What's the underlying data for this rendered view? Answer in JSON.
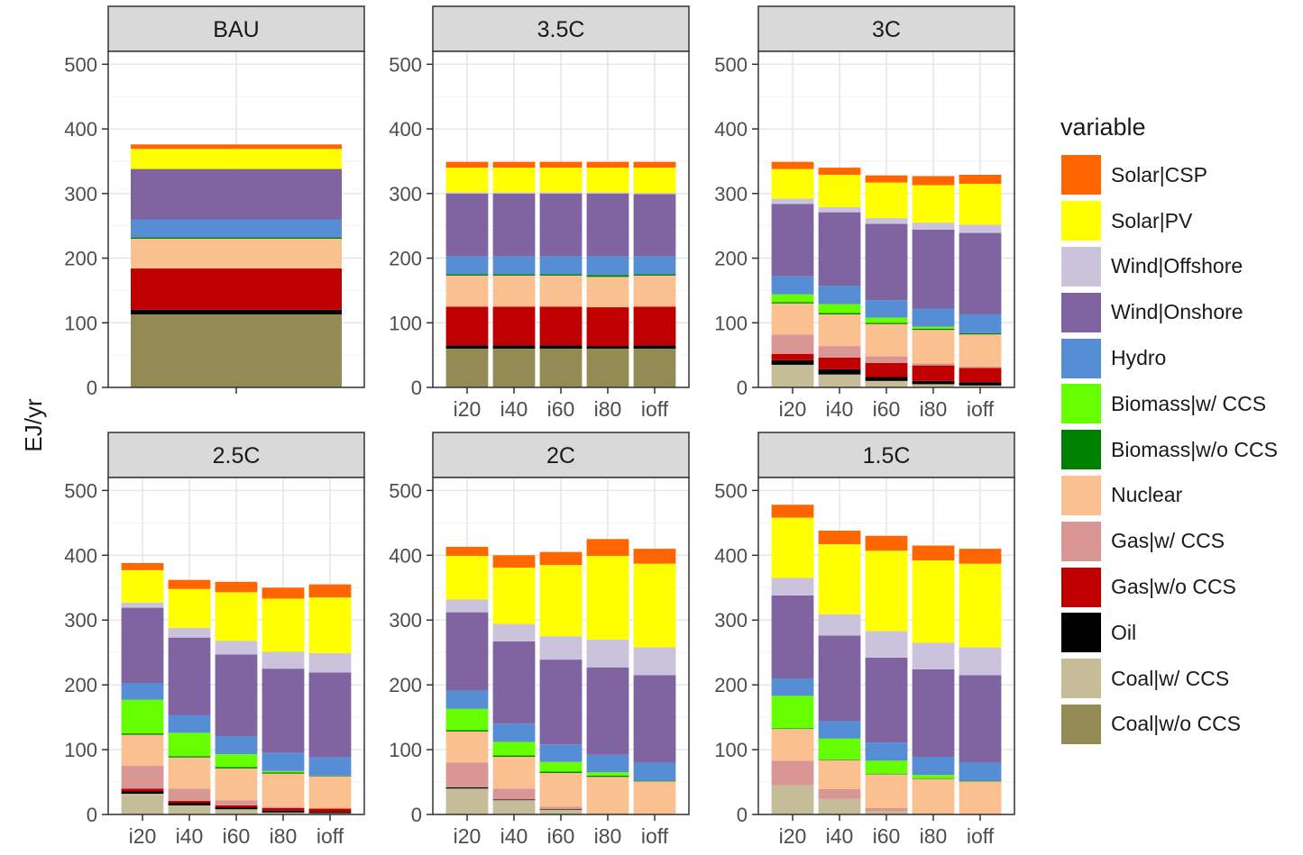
{
  "chart_data": {
    "type": "bar",
    "stacked": true,
    "ylabel": "EJ/yr",
    "ylim": [
      0,
      520
    ],
    "yticks": [
      0,
      100,
      200,
      300,
      400,
      500
    ],
    "legend": {
      "title": "variable",
      "placement": "right",
      "entries": [
        "Solar|CSP",
        "Solar|PV",
        "Wind|Offshore",
        "Wind|Onshore",
        "Hydro",
        "Biomass|w/ CCS",
        "Biomass|w/o CCS",
        "Nuclear",
        "Gas|w/ CCS",
        "Gas|w/o CCS",
        "Oil",
        "Coal|w/ CCS",
        "Coal|w/o CCS"
      ]
    },
    "series_order_bottom_up": [
      "Coal|w/o CCS",
      "Coal|w/ CCS",
      "Oil",
      "Gas|w/o CCS",
      "Gas|w/ CCS",
      "Nuclear",
      "Biomass|w/o CCS",
      "Biomass|w/ CCS",
      "Hydro",
      "Wind|Onshore",
      "Wind|Offshore",
      "Solar|PV",
      "Solar|CSP"
    ],
    "colors": {
      "Solar|CSP": "#ff6600",
      "Solar|PV": "#ffff00",
      "Wind|Offshore": "#cbc3dc",
      "Wind|Onshore": "#8064a2",
      "Hydro": "#558ed5",
      "Biomass|w/ CCS": "#66ff00",
      "Biomass|w/o CCS": "#008000",
      "Nuclear": "#fac090",
      "Gas|w/ CCS": "#d99694",
      "Gas|w/o CCS": "#c00000",
      "Oil": "#000000",
      "Coal|w/ CCS": "#c4bd97",
      "Coal|w/o CCS": "#948a54"
    },
    "panels": [
      {
        "title": "BAU",
        "categories": [
          ""
        ],
        "bars": [
          {
            "Coal|w/o CCS": 113,
            "Coal|w/ CCS": 0,
            "Oil": 7,
            "Gas|w/o CCS": 64,
            "Gas|w/ CCS": 0,
            "Nuclear": 46,
            "Biomass|w/o CCS": 2,
            "Biomass|w/ CCS": 0,
            "Hydro": 28,
            "Wind|Onshore": 78,
            "Wind|Offshore": 0,
            "Solar|PV": 31,
            "Solar|CSP": 7
          }
        ]
      },
      {
        "title": "3.5C",
        "categories": [
          "i20",
          "i40",
          "i60",
          "i80",
          "ioff"
        ],
        "bars": [
          {
            "Coal|w/o CCS": 60,
            "Coal|w/ CCS": 0,
            "Oil": 5,
            "Gas|w/o CCS": 60,
            "Gas|w/ CCS": 0,
            "Nuclear": 48,
            "Biomass|w/o CCS": 2,
            "Biomass|w/ CCS": 0,
            "Hydro": 28,
            "Wind|Onshore": 97,
            "Wind|Offshore": 2,
            "Solar|PV": 38,
            "Solar|CSP": 9
          },
          {
            "Coal|w/o CCS": 60,
            "Coal|w/ CCS": 0,
            "Oil": 5,
            "Gas|w/o CCS": 60,
            "Gas|w/ CCS": 0,
            "Nuclear": 48,
            "Biomass|w/o CCS": 2,
            "Biomass|w/ CCS": 0,
            "Hydro": 28,
            "Wind|Onshore": 97,
            "Wind|Offshore": 2,
            "Solar|PV": 38,
            "Solar|CSP": 9
          },
          {
            "Coal|w/o CCS": 60,
            "Coal|w/ CCS": 0,
            "Oil": 5,
            "Gas|w/o CCS": 60,
            "Gas|w/ CCS": 0,
            "Nuclear": 48,
            "Biomass|w/o CCS": 2,
            "Biomass|w/ CCS": 0,
            "Hydro": 28,
            "Wind|Onshore": 97,
            "Wind|Offshore": 2,
            "Solar|PV": 38,
            "Solar|CSP": 9
          },
          {
            "Coal|w/o CCS": 60,
            "Coal|w/ CCS": 0,
            "Oil": 4,
            "Gas|w/o CCS": 60,
            "Gas|w/ CCS": 0,
            "Nuclear": 47,
            "Biomass|w/o CCS": 3,
            "Biomass|w/ CCS": 0,
            "Hydro": 29,
            "Wind|Onshore": 97,
            "Wind|Offshore": 2,
            "Solar|PV": 38,
            "Solar|CSP": 9
          },
          {
            "Coal|w/o CCS": 60,
            "Coal|w/ CCS": 0,
            "Oil": 5,
            "Gas|w/o CCS": 60,
            "Gas|w/ CCS": 0,
            "Nuclear": 48,
            "Biomass|w/o CCS": 2,
            "Biomass|w/ CCS": 0,
            "Hydro": 28,
            "Wind|Onshore": 96,
            "Wind|Offshore": 2,
            "Solar|PV": 39,
            "Solar|CSP": 9
          }
        ]
      },
      {
        "title": "3C",
        "categories": [
          "i20",
          "i40",
          "i60",
          "i80",
          "ioff"
        ],
        "bars": [
          {
            "Coal|w/o CCS": 0,
            "Coal|w/ CCS": 35,
            "Oil": 7,
            "Gas|w/o CCS": 10,
            "Gas|w/ CCS": 30,
            "Nuclear": 48,
            "Biomass|w/o CCS": 2,
            "Biomass|w/ CCS": 12,
            "Hydro": 28,
            "Wind|Onshore": 112,
            "Wind|Offshore": 8,
            "Solar|PV": 46,
            "Solar|CSP": 11
          },
          {
            "Coal|w/o CCS": 0,
            "Coal|w/ CCS": 20,
            "Oil": 8,
            "Gas|w/o CCS": 18,
            "Gas|w/ CCS": 18,
            "Nuclear": 49,
            "Biomass|w/o CCS": 2,
            "Biomass|w/ CCS": 14,
            "Hydro": 28,
            "Wind|Onshore": 114,
            "Wind|Offshore": 8,
            "Solar|PV": 50,
            "Solar|CSP": 11
          },
          {
            "Coal|w/o CCS": 0,
            "Coal|w/ CCS": 10,
            "Oil": 6,
            "Gas|w/o CCS": 22,
            "Gas|w/ CCS": 10,
            "Nuclear": 50,
            "Biomass|w/o CCS": 2,
            "Biomass|w/ CCS": 8,
            "Hydro": 27,
            "Wind|Onshore": 118,
            "Wind|Offshore": 9,
            "Solar|PV": 55,
            "Solar|CSP": 11
          },
          {
            "Coal|w/o CCS": 0,
            "Coal|w/ CCS": 5,
            "Oil": 5,
            "Gas|w/o CCS": 24,
            "Gas|w/ CCS": 3,
            "Nuclear": 52,
            "Biomass|w/o CCS": 2,
            "Biomass|w/ CCS": 3,
            "Hydro": 28,
            "Wind|Onshore": 122,
            "Wind|Offshore": 11,
            "Solar|PV": 58,
            "Solar|CSP": 14
          },
          {
            "Coal|w/o CCS": 0,
            "Coal|w/ CCS": 3,
            "Oil": 5,
            "Gas|w/o CCS": 22,
            "Gas|w/ CCS": 2,
            "Nuclear": 50,
            "Biomass|w/o CCS": 2,
            "Biomass|w/ CCS": 0,
            "Hydro": 29,
            "Wind|Onshore": 126,
            "Wind|Offshore": 13,
            "Solar|PV": 63,
            "Solar|CSP": 14
          }
        ]
      },
      {
        "title": "2.5C",
        "categories": [
          "i20",
          "i40",
          "i60",
          "i80",
          "ioff"
        ],
        "bars": [
          {
            "Coal|w/o CCS": 0,
            "Coal|w/ CCS": 32,
            "Oil": 4,
            "Gas|w/o CCS": 4,
            "Gas|w/ CCS": 35,
            "Nuclear": 48,
            "Biomass|w/o CCS": 2,
            "Biomass|w/ CCS": 52,
            "Hydro": 26,
            "Wind|Onshore": 116,
            "Wind|Offshore": 8,
            "Solar|PV": 50,
            "Solar|CSP": 11
          },
          {
            "Coal|w/o CCS": 0,
            "Coal|w/ CCS": 14,
            "Oil": 4,
            "Gas|w/o CCS": 3,
            "Gas|w/ CCS": 19,
            "Nuclear": 48,
            "Biomass|w/o CCS": 2,
            "Biomass|w/ CCS": 36,
            "Hydro": 27,
            "Wind|Onshore": 120,
            "Wind|Offshore": 15,
            "Solar|PV": 60,
            "Solar|CSP": 14
          },
          {
            "Coal|w/o CCS": 0,
            "Coal|w/ CCS": 8,
            "Oil": 3,
            "Gas|w/o CCS": 3,
            "Gas|w/ CCS": 8,
            "Nuclear": 49,
            "Biomass|w/o CCS": 2,
            "Biomass|w/ CCS": 20,
            "Hydro": 28,
            "Wind|Onshore": 126,
            "Wind|Offshore": 21,
            "Solar|PV": 75,
            "Solar|CSP": 16
          },
          {
            "Coal|w/o CCS": 0,
            "Coal|w/ CCS": 3,
            "Oil": 3,
            "Gas|w/o CCS": 4,
            "Gas|w/ CCS": 2,
            "Nuclear": 51,
            "Biomass|w/o CCS": 2,
            "Biomass|w/ CCS": 2,
            "Hydro": 28,
            "Wind|Onshore": 130,
            "Wind|Offshore": 26,
            "Solar|PV": 82,
            "Solar|CSP": 17
          },
          {
            "Coal|w/o CCS": 0,
            "Coal|w/ CCS": 2,
            "Oil": 2,
            "Gas|w/o CCS": 5,
            "Gas|w/ CCS": 0,
            "Nuclear": 50,
            "Biomass|w/o CCS": 1,
            "Biomass|w/ CCS": 0,
            "Hydro": 28,
            "Wind|Onshore": 131,
            "Wind|Offshore": 30,
            "Solar|PV": 86,
            "Solar|CSP": 20
          }
        ]
      },
      {
        "title": "2C",
        "categories": [
          "i20",
          "i40",
          "i60",
          "i80",
          "ioff"
        ],
        "bars": [
          {
            "Coal|w/o CCS": 0,
            "Coal|w/ CCS": 40,
            "Oil": 2,
            "Gas|w/o CCS": 0,
            "Gas|w/ CCS": 38,
            "Nuclear": 48,
            "Biomass|w/o CCS": 2,
            "Biomass|w/ CCS": 33,
            "Hydro": 28,
            "Wind|Onshore": 121,
            "Wind|Offshore": 20,
            "Solar|PV": 67,
            "Solar|CSP": 14
          },
          {
            "Coal|w/o CCS": 0,
            "Coal|w/ CCS": 22,
            "Oil": 1,
            "Gas|w/o CCS": 0,
            "Gas|w/ CCS": 17,
            "Nuclear": 49,
            "Biomass|w/o CCS": 2,
            "Biomass|w/ CCS": 21,
            "Hydro": 28,
            "Wind|Onshore": 127,
            "Wind|Offshore": 27,
            "Solar|PV": 87,
            "Solar|CSP": 19
          },
          {
            "Coal|w/o CCS": 0,
            "Coal|w/ CCS": 7,
            "Oil": 1,
            "Gas|w/o CCS": 0,
            "Gas|w/ CCS": 4,
            "Nuclear": 52,
            "Biomass|w/o CCS": 2,
            "Biomass|w/ CCS": 15,
            "Hydro": 27,
            "Wind|Onshore": 131,
            "Wind|Offshore": 36,
            "Solar|PV": 110,
            "Solar|CSP": 20
          },
          {
            "Coal|w/o CCS": 0,
            "Coal|w/ CCS": 2,
            "Oil": 0,
            "Gas|w/o CCS": 0,
            "Gas|w/ CCS": 0,
            "Nuclear": 56,
            "Biomass|w/o CCS": 2,
            "Biomass|w/ CCS": 5,
            "Hydro": 27,
            "Wind|Onshore": 135,
            "Wind|Offshore": 43,
            "Solar|PV": 129,
            "Solar|CSP": 26
          },
          {
            "Coal|w/o CCS": 0,
            "Coal|w/ CCS": 0,
            "Oil": 0,
            "Gas|w/o CCS": 0,
            "Gas|w/ CCS": 0,
            "Nuclear": 51,
            "Biomass|w/o CCS": 1,
            "Biomass|w/ CCS": 0,
            "Hydro": 28,
            "Wind|Onshore": 135,
            "Wind|Offshore": 43,
            "Solar|PV": 129,
            "Solar|CSP": 23
          }
        ]
      },
      {
        "title": "1.5C",
        "categories": [
          "i20",
          "i40",
          "i60",
          "i80",
          "ioff"
        ],
        "bars": [
          {
            "Coal|w/o CCS": 0,
            "Coal|w/ CCS": 45,
            "Oil": 0,
            "Gas|w/o CCS": 0,
            "Gas|w/ CCS": 38,
            "Nuclear": 49,
            "Biomass|w/o CCS": 1,
            "Biomass|w/ CCS": 50,
            "Hydro": 27,
            "Wind|Onshore": 128,
            "Wind|Offshore": 27,
            "Solar|PV": 93,
            "Solar|CSP": 20
          },
          {
            "Coal|w/o CCS": 0,
            "Coal|w/ CCS": 24,
            "Oil": 0,
            "Gas|w/o CCS": 0,
            "Gas|w/ CCS": 15,
            "Nuclear": 45,
            "Biomass|w/o CCS": 1,
            "Biomass|w/ CCS": 32,
            "Hydro": 27,
            "Wind|Onshore": 132,
            "Wind|Offshore": 33,
            "Solar|PV": 108,
            "Solar|CSP": 21
          },
          {
            "Coal|w/o CCS": 0,
            "Coal|w/ CCS": 5,
            "Oil": 0,
            "Gas|w/o CCS": 0,
            "Gas|w/ CCS": 5,
            "Nuclear": 52,
            "Biomass|w/o CCS": 1,
            "Biomass|w/ CCS": 20,
            "Hydro": 28,
            "Wind|Onshore": 131,
            "Wind|Offshore": 41,
            "Solar|PV": 124,
            "Solar|CSP": 23
          },
          {
            "Coal|w/o CCS": 0,
            "Coal|w/ CCS": 2,
            "Oil": 0,
            "Gas|w/o CCS": 0,
            "Gas|w/ CCS": 0,
            "Nuclear": 53,
            "Biomass|w/o CCS": 1,
            "Biomass|w/ CCS": 5,
            "Hydro": 28,
            "Wind|Onshore": 135,
            "Wind|Offshore": 41,
            "Solar|PV": 127,
            "Solar|CSP": 23
          },
          {
            "Coal|w/o CCS": 0,
            "Coal|w/ CCS": 0,
            "Oil": 0,
            "Gas|w/o CCS": 0,
            "Gas|w/ CCS": 0,
            "Nuclear": 51,
            "Biomass|w/o CCS": 1,
            "Biomass|w/ CCS": 0,
            "Hydro": 28,
            "Wind|Onshore": 135,
            "Wind|Offshore": 43,
            "Solar|PV": 129,
            "Solar|CSP": 23
          }
        ]
      }
    ]
  }
}
